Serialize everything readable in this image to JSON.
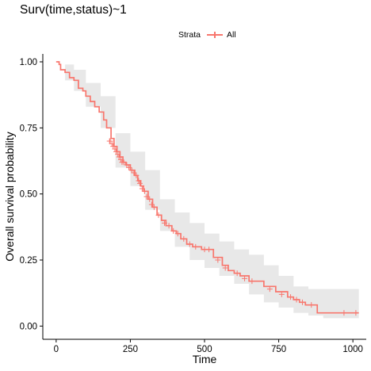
{
  "title": "Surv(time,status)~1",
  "legend": {
    "title": "Strata",
    "label": "All"
  },
  "colors": {
    "curve": "#f8766d",
    "band": "#e8e8e8",
    "axis": "#000000"
  },
  "chart_data": {
    "type": "line",
    "subtype": "kaplan-meier step curve with 95% confidence band",
    "xlabel": "Time",
    "ylabel": "Overall survival probability",
    "xlim": [
      -45,
      1045
    ],
    "ylim": [
      -0.05,
      1.03
    ],
    "x_ticks": [
      0,
      250,
      500,
      750,
      1000
    ],
    "x_tick_labels": [
      "0",
      "250",
      "500",
      "750",
      "1000"
    ],
    "y_ticks": [
      0,
      0.25,
      0.5,
      0.75,
      1.0
    ],
    "y_tick_labels": [
      "0.00",
      "0.25",
      "0.50",
      "0.75",
      "1.00"
    ],
    "grid": false,
    "legend_position": "top",
    "series": [
      {
        "name": "All",
        "steps": [
          [
            0,
            1.0
          ],
          [
            10,
            0.99
          ],
          [
            15,
            0.97
          ],
          [
            30,
            0.96
          ],
          [
            45,
            0.94
          ],
          [
            60,
            0.93
          ],
          [
            75,
            0.9
          ],
          [
            90,
            0.89
          ],
          [
            100,
            0.87
          ],
          [
            115,
            0.85
          ],
          [
            130,
            0.83
          ],
          [
            145,
            0.81
          ],
          [
            160,
            0.78
          ],
          [
            170,
            0.75
          ],
          [
            185,
            0.71
          ],
          [
            195,
            0.68
          ],
          [
            205,
            0.66
          ],
          [
            215,
            0.64
          ],
          [
            225,
            0.62
          ],
          [
            235,
            0.61
          ],
          [
            250,
            0.59
          ],
          [
            265,
            0.57
          ],
          [
            275,
            0.55
          ],
          [
            285,
            0.53
          ],
          [
            295,
            0.51
          ],
          [
            310,
            0.48
          ],
          [
            325,
            0.45
          ],
          [
            340,
            0.42
          ],
          [
            355,
            0.4
          ],
          [
            370,
            0.38
          ],
          [
            390,
            0.36
          ],
          [
            405,
            0.35
          ],
          [
            420,
            0.33
          ],
          [
            440,
            0.31
          ],
          [
            460,
            0.3
          ],
          [
            490,
            0.29
          ],
          [
            530,
            0.26
          ],
          [
            560,
            0.23
          ],
          [
            580,
            0.21
          ],
          [
            600,
            0.2
          ],
          [
            620,
            0.19
          ],
          [
            650,
            0.17
          ],
          [
            700,
            0.15
          ],
          [
            740,
            0.13
          ],
          [
            780,
            0.11
          ],
          [
            800,
            0.1
          ],
          [
            820,
            0.09
          ],
          [
            840,
            0.08
          ],
          [
            880,
            0.05
          ],
          [
            1020,
            0.05
          ]
        ],
        "ci_upper": [
          [
            0,
            1.0
          ],
          [
            30,
            0.99
          ],
          [
            60,
            0.97
          ],
          [
            100,
            0.92
          ],
          [
            150,
            0.87
          ],
          [
            200,
            0.73
          ],
          [
            250,
            0.66
          ],
          [
            300,
            0.59
          ],
          [
            350,
            0.48
          ],
          [
            400,
            0.43
          ],
          [
            450,
            0.39
          ],
          [
            500,
            0.35
          ],
          [
            550,
            0.32
          ],
          [
            600,
            0.29
          ],
          [
            650,
            0.27
          ],
          [
            700,
            0.23
          ],
          [
            750,
            0.19
          ],
          [
            800,
            0.15
          ],
          [
            850,
            0.14
          ],
          [
            900,
            0.14
          ],
          [
            1020,
            0.14
          ]
        ],
        "ci_lower": [
          [
            0,
            1.0
          ],
          [
            30,
            0.93
          ],
          [
            60,
            0.89
          ],
          [
            100,
            0.83
          ],
          [
            150,
            0.75
          ],
          [
            200,
            0.6
          ],
          [
            250,
            0.53
          ],
          [
            300,
            0.44
          ],
          [
            350,
            0.36
          ],
          [
            400,
            0.3
          ],
          [
            450,
            0.25
          ],
          [
            500,
            0.22
          ],
          [
            550,
            0.19
          ],
          [
            600,
            0.16
          ],
          [
            650,
            0.12
          ],
          [
            700,
            0.09
          ],
          [
            750,
            0.07
          ],
          [
            800,
            0.05
          ],
          [
            850,
            0.04
          ],
          [
            900,
            0.03
          ],
          [
            1020,
            0.01
          ]
        ],
        "censored": [
          [
            180,
            0.7
          ],
          [
            182,
            0.7
          ],
          [
            188,
            0.69
          ],
          [
            192,
            0.68
          ],
          [
            198,
            0.67
          ],
          [
            202,
            0.66
          ],
          [
            208,
            0.65
          ],
          [
            212,
            0.64
          ],
          [
            218,
            0.63
          ],
          [
            222,
            0.62
          ],
          [
            228,
            0.62
          ],
          [
            238,
            0.61
          ],
          [
            245,
            0.6
          ],
          [
            255,
            0.59
          ],
          [
            262,
            0.58
          ],
          [
            270,
            0.57
          ],
          [
            278,
            0.55
          ],
          [
            282,
            0.54
          ],
          [
            290,
            0.52
          ],
          [
            298,
            0.51
          ],
          [
            305,
            0.49
          ],
          [
            315,
            0.48
          ],
          [
            322,
            0.46
          ],
          [
            330,
            0.45
          ],
          [
            345,
            0.42
          ],
          [
            365,
            0.39
          ],
          [
            380,
            0.38
          ],
          [
            395,
            0.36
          ],
          [
            410,
            0.35
          ],
          [
            430,
            0.33
          ],
          [
            450,
            0.31
          ],
          [
            470,
            0.3
          ],
          [
            500,
            0.29
          ],
          [
            515,
            0.29
          ],
          [
            545,
            0.25
          ],
          [
            570,
            0.22
          ],
          [
            610,
            0.2
          ],
          [
            635,
            0.18
          ],
          [
            660,
            0.17
          ],
          [
            720,
            0.14
          ],
          [
            760,
            0.12
          ],
          [
            790,
            0.11
          ],
          [
            810,
            0.1
          ],
          [
            830,
            0.09
          ],
          [
            860,
            0.08
          ],
          [
            970,
            0.05
          ],
          [
            1010,
            0.05
          ]
        ]
      }
    ]
  }
}
